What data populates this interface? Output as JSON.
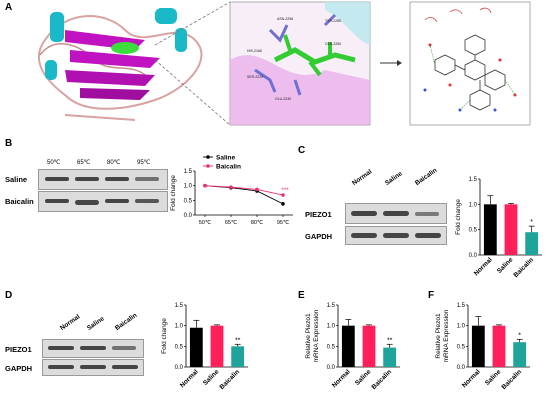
{
  "panels": {
    "A": "A",
    "B": "B",
    "C": "C",
    "D": "D",
    "E": "E",
    "F": "F"
  },
  "panelA": {
    "residue_labels": [
      "TYR-2285",
      "ASN-2256",
      "HIS-2166",
      "GLN-2280",
      "SER-2229",
      "GLU-2230"
    ]
  },
  "panelB": {
    "temps": [
      "50℃",
      "65℃",
      "80℃",
      "95℃"
    ],
    "rows": [
      "Saline",
      "Baicalin"
    ]
  },
  "panelC": {
    "cols": [
      "Normal",
      "Saline",
      "Baicalin"
    ],
    "rows": [
      "PIEZO1",
      "GAPDH"
    ]
  },
  "panelD": {
    "cols": [
      "Normal",
      "Saline",
      "Baicalin"
    ],
    "rows": [
      "PIEZO1",
      "GAPDH"
    ]
  },
  "colors": {
    "normal": "#000000",
    "saline": "#ff1f5a",
    "baicalin": "#1fa39a",
    "line_saline": "#000000",
    "line_baicalin": "#e8336d"
  },
  "chart_data": [
    {
      "id": "B-line",
      "type": "line",
      "categories": [
        "50℃",
        "65℃",
        "80℃",
        "95℃"
      ],
      "ylabel": "Fold change",
      "ylim": [
        0.0,
        1.5
      ],
      "yticks": [
        "0.0",
        "0.5",
        "1.0",
        "1.5"
      ],
      "series": [
        {
          "name": "Saline",
          "values": [
            1.0,
            0.93,
            0.82,
            0.38
          ]
        },
        {
          "name": "Baicalin",
          "values": [
            1.0,
            0.95,
            0.87,
            0.68
          ]
        }
      ],
      "annotation": "***",
      "legend": "top"
    },
    {
      "id": "C-bar",
      "type": "bar",
      "categories": [
        "Normal",
        "Saline",
        "Baicalin"
      ],
      "values": [
        1.0,
        1.0,
        0.45
      ],
      "errors": [
        0.17,
        0.02,
        0.12
      ],
      "ylabel": "Fold change",
      "ylim": [
        0.0,
        1.5
      ],
      "yticks": [
        "0.0",
        "0.5",
        "1.0",
        "1.5"
      ],
      "annotation": "*"
    },
    {
      "id": "D-bar",
      "type": "bar",
      "categories": [
        "Normal",
        "Saline",
        "Baicalin"
      ],
      "values": [
        0.95,
        1.0,
        0.5
      ],
      "errors": [
        0.18,
        0.02,
        0.05
      ],
      "ylabel": "Fold change",
      "ylim": [
        0.0,
        1.5
      ],
      "yticks": [
        "0.0",
        "0.5",
        "1.0",
        "1.5"
      ],
      "annotation": "**"
    },
    {
      "id": "E-bar",
      "type": "bar",
      "categories": [
        "Normal",
        "Saline",
        "Baicalin"
      ],
      "values": [
        1.0,
        1.0,
        0.47
      ],
      "errors": [
        0.15,
        0.02,
        0.08
      ],
      "ylabel_lines": [
        "Relative Piezo1",
        "mRNA Expression"
      ],
      "ylim": [
        0.0,
        1.5
      ],
      "yticks": [
        "0.0",
        "0.5",
        "1.0",
        "1.5"
      ],
      "annotation": "**"
    },
    {
      "id": "F-bar",
      "type": "bar",
      "categories": [
        "Normal",
        "Saline",
        "Baicalin"
      ],
      "values": [
        1.0,
        1.0,
        0.6
      ],
      "errors": [
        0.22,
        0.02,
        0.07
      ],
      "ylabel_lines": [
        "Relative Piezo1",
        "mRNA Expression"
      ],
      "ylim": [
        0.0,
        1.5
      ],
      "yticks": [
        "0.0",
        "0.5",
        "1.0",
        "1.5"
      ],
      "annotation": "*"
    }
  ]
}
